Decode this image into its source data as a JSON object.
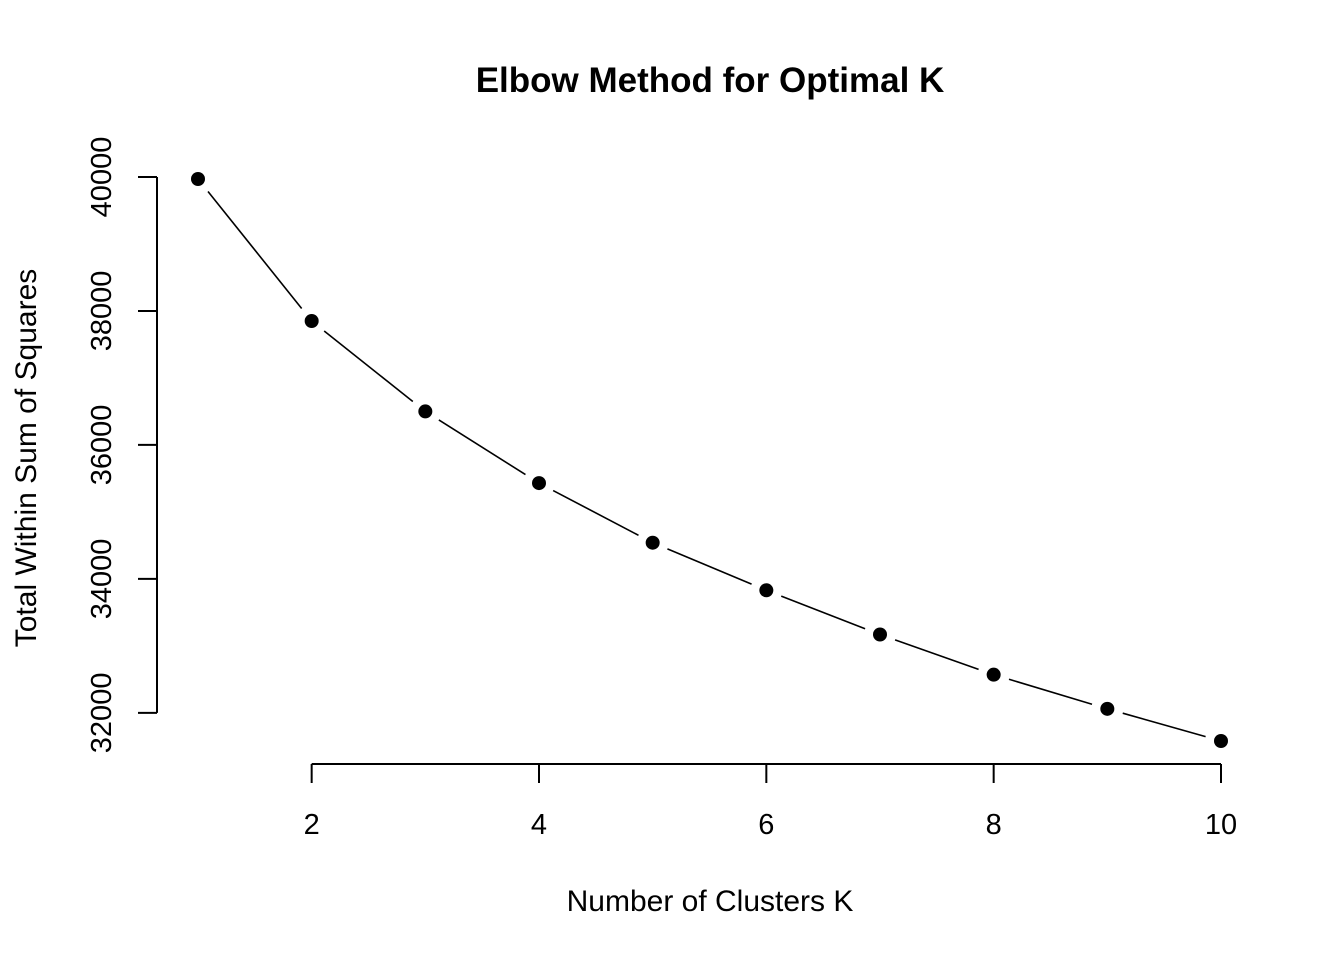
{
  "chart_data": {
    "type": "line",
    "title": "Elbow Method for Optimal K",
    "xlabel": "Number of Clusters K",
    "ylabel": "Total Within Sum of Squares",
    "x": [
      1,
      2,
      3,
      4,
      5,
      6,
      7,
      8,
      9,
      10
    ],
    "series": [
      {
        "values": [
          39970,
          37850,
          36500,
          35430,
          34540,
          33830,
          33170,
          32570,
          32060,
          31580
        ]
      }
    ],
    "x_ticks": [
      2,
      4,
      6,
      8,
      10
    ],
    "y_ticks": [
      32000,
      34000,
      36000,
      38000,
      40000
    ],
    "xlim": [
      1,
      10
    ],
    "ylim": [
      31580,
      39970
    ],
    "line_style": "both",
    "marker": "filled-circle",
    "color": "#000000",
    "grid": false,
    "legend": false
  }
}
